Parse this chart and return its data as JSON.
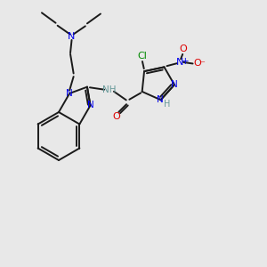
{
  "bg_color": "#e8e8e8",
  "bond_color": "#1a1a1a",
  "N_color": "#0000ee",
  "O_color": "#dd0000",
  "Cl_color": "#008800",
  "H_color": "#669999",
  "figsize": [
    3.0,
    3.0
  ],
  "dpi": 100,
  "xlim": [
    0,
    10
  ],
  "ylim": [
    0,
    10
  ]
}
